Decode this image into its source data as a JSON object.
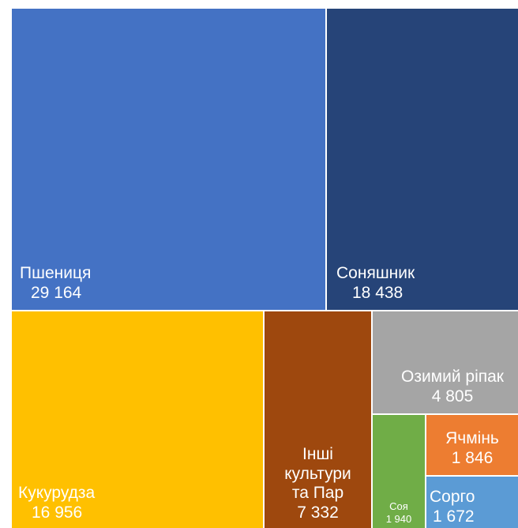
{
  "chart_data": {
    "type": "treemap",
    "title": "",
    "items": [
      {
        "name": "Пшениця",
        "value_label": "29 164",
        "value": 29164,
        "color": "#4472C4"
      },
      {
        "name": "Соняшник",
        "value_label": "18 438",
        "value": 18438,
        "color": "#264478"
      },
      {
        "name": "Кукурудза",
        "value_label": "16 956",
        "value": 16956,
        "color": "#FFC000"
      },
      {
        "name_lines": [
          "Інші",
          "культури",
          "та Пар"
        ],
        "value_label": "7 332",
        "value": 7332,
        "color": "#9E480E"
      },
      {
        "name": "Озимий ріпак",
        "value_label": "4 805",
        "value": 4805,
        "color": "#A5A5A5"
      },
      {
        "name": "Соя",
        "value_label": "1 940",
        "value": 1940,
        "color": "#70AD47"
      },
      {
        "name": "Ячмінь",
        "value_label": "1 846",
        "value": 1846,
        "color": "#ED7D31"
      },
      {
        "name": "Сорго",
        "value_label": "1 672",
        "value": 1672,
        "color": "#5B9BD5"
      }
    ]
  }
}
